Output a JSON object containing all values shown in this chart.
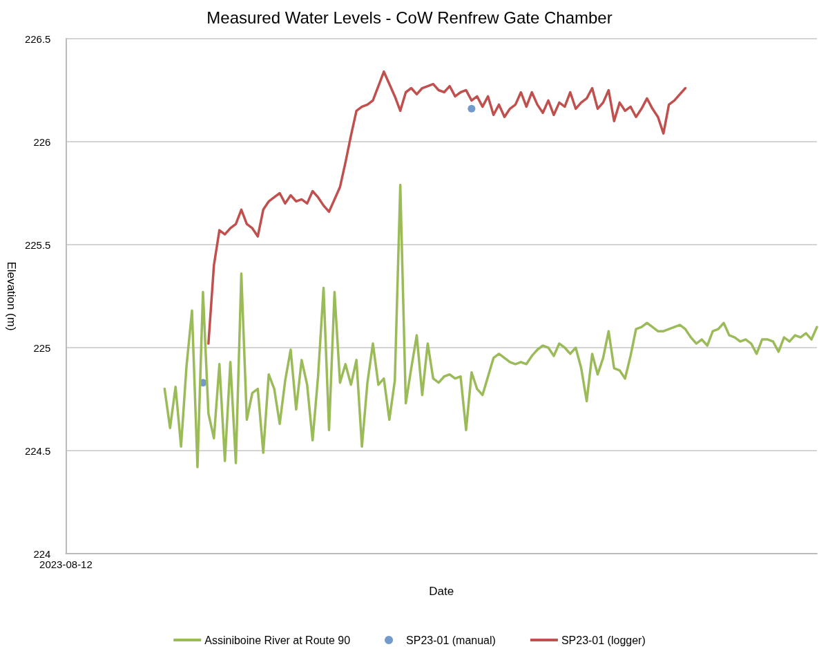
{
  "chart_data": {
    "type": "line",
    "title": "Measured Water Levels - CoW Renfrew Gate Chamber",
    "xlabel": "Date",
    "ylabel": "Elevation (m)",
    "categories": [
      "2023-08-12",
      null,
      null,
      null,
      null,
      null,
      null,
      null,
      null,
      null,
      null,
      null,
      null,
      null,
      null,
      null,
      null,
      null,
      null,
      null,
      null,
      null,
      null,
      null,
      null,
      null,
      null,
      null,
      null,
      null,
      null,
      null,
      null,
      null,
      null,
      null,
      null,
      null,
      null,
      null,
      null,
      null,
      null,
      null,
      null,
      null,
      null,
      null,
      null,
      null,
      null,
      null,
      null,
      null,
      null,
      null,
      null,
      null,
      null,
      null,
      null,
      null,
      null,
      null,
      null,
      null,
      null,
      null,
      null,
      null,
      null,
      null,
      null,
      null,
      null,
      null,
      null,
      null,
      null,
      null,
      null,
      null,
      null,
      null,
      null,
      null,
      null,
      null,
      null,
      null,
      null,
      null,
      null,
      null,
      null,
      null,
      null,
      null,
      null,
      null,
      null,
      null,
      null,
      null,
      null,
      null,
      null,
      null,
      null,
      null,
      null,
      null,
      null,
      null,
      null,
      null,
      null,
      null,
      null,
      null,
      null,
      null,
      null,
      null,
      null,
      null,
      null,
      null,
      null,
      null,
      null,
      null,
      null,
      null,
      null,
      null,
      null,
      null
    ],
    "series": [
      {
        "name": "Assiniboine River at Route 90",
        "color": "#9bbb59",
        "marker": "none",
        "values": [
          null,
          null,
          null,
          null,
          null,
          null,
          null,
          null,
          null,
          null,
          null,
          null,
          null,
          null,
          null,
          null,
          null,
          null,
          224.8,
          224.61,
          224.81,
          224.52,
          224.91,
          225.18,
          224.42,
          225.27,
          224.68,
          224.56,
          224.92,
          224.45,
          224.93,
          224.44,
          225.36,
          224.65,
          224.78,
          224.8,
          224.49,
          224.87,
          224.8,
          224.63,
          224.84,
          224.99,
          224.7,
          224.94,
          224.82,
          224.55,
          224.86,
          225.29,
          224.6,
          225.27,
          224.83,
          224.92,
          224.82,
          224.94,
          224.52,
          224.83,
          225.02,
          224.82,
          224.85,
          224.65,
          224.84,
          225.79,
          224.73,
          224.9,
          225.06,
          224.77,
          225.02,
          224.85,
          224.83,
          224.86,
          224.87,
          224.85,
          224.86,
          224.6,
          224.88,
          224.8,
          224.77,
          224.86,
          224.95,
          224.97,
          224.95,
          224.93,
          224.92,
          224.93,
          224.92,
          224.96,
          224.99,
          225.01,
          225.0,
          224.96,
          225.02,
          225.0,
          224.97,
          225.0,
          224.9,
          224.74,
          224.97,
          224.87,
          224.95,
          225.08,
          224.9,
          224.89,
          224.85,
          224.96,
          225.09,
          225.1,
          225.12,
          225.1,
          225.08,
          225.08,
          225.09,
          225.1,
          225.11,
          225.09,
          225.05,
          225.02,
          225.04,
          225.01,
          225.08,
          225.09,
          225.12,
          225.06,
          225.05,
          225.03,
          225.04,
          225.02,
          224.97,
          225.04,
          225.04,
          225.03,
          224.98,
          225.05,
          225.03,
          225.06,
          225.05,
          225.07,
          225.04,
          225.1
        ]
      },
      {
        "name": "SP23-01 (manual)",
        "type": "scatter",
        "color": "#4f81bd",
        "marker": "circle",
        "values": [
          null,
          null,
          null,
          null,
          null,
          null,
          null,
          null,
          null,
          null,
          null,
          null,
          null,
          null,
          null,
          null,
          null,
          null,
          null,
          null,
          null,
          null,
          null,
          null,
          null,
          224.83,
          null,
          null,
          null,
          null,
          null,
          null,
          null,
          null,
          null,
          null,
          null,
          null,
          null,
          null,
          null,
          null,
          null,
          null,
          null,
          null,
          null,
          null,
          null,
          null,
          null,
          null,
          null,
          null,
          null,
          null,
          null,
          null,
          null,
          null,
          null,
          null,
          null,
          null,
          null,
          null,
          null,
          null,
          null,
          null,
          null,
          null,
          null,
          null,
          226.16,
          null,
          null,
          null,
          null,
          null,
          null,
          null,
          null,
          null,
          null,
          null,
          null,
          null,
          null,
          null,
          null,
          null,
          null,
          null,
          null,
          null,
          null,
          null,
          null,
          null,
          null,
          null,
          null,
          null,
          null,
          null,
          null,
          null,
          null,
          null,
          null,
          null,
          null,
          null,
          null,
          null,
          null,
          null,
          null,
          null,
          null,
          null,
          null,
          null,
          null,
          null,
          null,
          null,
          null,
          null,
          null,
          null,
          null,
          null,
          null,
          null,
          null,
          null
        ]
      },
      {
        "name": "SP23-01 (logger)",
        "color": "#c0504d",
        "marker": "none",
        "values": [
          null,
          null,
          null,
          null,
          null,
          null,
          null,
          null,
          null,
          null,
          null,
          null,
          null,
          null,
          null,
          null,
          null,
          null,
          null,
          null,
          null,
          null,
          null,
          null,
          null,
          null,
          225.02,
          225.4,
          225.57,
          225.55,
          225.58,
          225.6,
          225.67,
          225.6,
          225.58,
          225.54,
          225.67,
          225.71,
          225.73,
          225.75,
          225.7,
          225.74,
          225.71,
          225.72,
          225.7,
          225.76,
          225.73,
          225.69,
          225.66,
          225.72,
          225.78,
          225.9,
          226.03,
          226.15,
          226.17,
          226.18,
          226.2,
          226.27,
          226.34,
          226.28,
          226.22,
          226.15,
          226.24,
          226.26,
          226.23,
          226.26,
          226.27,
          226.28,
          226.25,
          226.24,
          226.27,
          226.22,
          226.24,
          226.25,
          226.2,
          226.22,
          226.17,
          226.22,
          226.13,
          226.18,
          226.12,
          226.16,
          226.18,
          226.24,
          226.17,
          226.24,
          226.18,
          226.14,
          226.2,
          226.13,
          226.19,
          226.17,
          226.24,
          226.16,
          226.19,
          226.21,
          226.26,
          226.16,
          226.19,
          226.25,
          226.1,
          226.19,
          226.15,
          226.17,
          226.12,
          226.16,
          226.21,
          226.16,
          226.12,
          226.04,
          226.18,
          226.2,
          226.23,
          226.26,
          null,
          null,
          null,
          null,
          null,
          null,
          null,
          null,
          null,
          null,
          null,
          null,
          null,
          null,
          null,
          null,
          null,
          null,
          null,
          null,
          null,
          null,
          null,
          null
        ]
      }
    ],
    "ylim": [
      224,
      226.5
    ],
    "yticks": [
      224,
      224.5,
      225,
      225.5,
      226,
      226.5
    ],
    "grid": "y",
    "legend": "bottom"
  }
}
